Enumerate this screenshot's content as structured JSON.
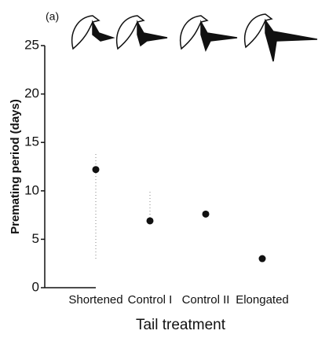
{
  "chart_data": {
    "type": "dot",
    "title": "(a)",
    "y_label": "Premating period (days)",
    "x_label": "Tail treatment",
    "categories": [
      "Shortened",
      "Control I",
      "Control II",
      "Elongated"
    ],
    "values": [
      12.2,
      6.9,
      7.6,
      3.0
    ],
    "error_lower": [
      3,
      null,
      null,
      null
    ],
    "error_upper": [
      14,
      10,
      null,
      null
    ],
    "color": "#111111",
    "ylim": [
      0,
      25
    ],
    "yticks": [
      0,
      5,
      10,
      15,
      20,
      25
    ],
    "grid": false
  }
}
